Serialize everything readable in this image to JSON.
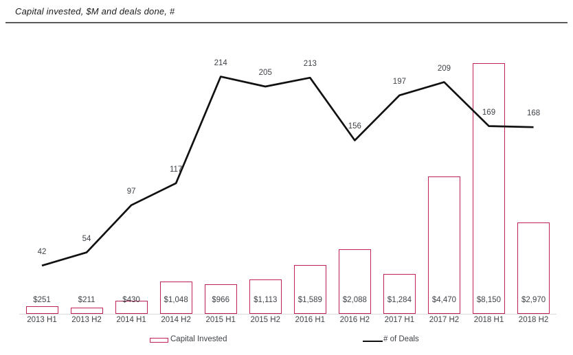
{
  "title": "Capital invested, $M and deals done, #",
  "legend": {
    "bar_label": "Capital Invested",
    "line_label": "# of Deals"
  },
  "colors": {
    "bar_stroke": "#be2056",
    "bar_fill": "#ffffff",
    "line": "#111111",
    "label_text": "#3f4348",
    "axis_line": "#d9d9d9",
    "divider": "#5a5a5a"
  },
  "chart_data": {
    "type": "combo-bar-line",
    "title": "Capital invested, $M and deals done, #",
    "categories": [
      "2013 H1",
      "2013 H2",
      "2014 H1",
      "2014 H2",
      "2015 H1",
      "2015 H2",
      "2016 H1",
      "2016 H2",
      "2017 H1",
      "2017 H2",
      "2018 H1",
      "2018 H2"
    ],
    "series": [
      {
        "name": "Capital Invested",
        "type": "bar",
        "unit": "$M",
        "values": [
          251,
          211,
          430,
          1048,
          966,
          1113,
          1589,
          2088,
          1284,
          4470,
          8150,
          2970
        ],
        "value_labels": [
          "$251",
          "$211",
          "$430",
          "$1,048",
          "$966",
          "$1,113",
          "$1,589",
          "$2,088",
          "$1,284",
          "$4,470",
          "$8,150",
          "$2,970"
        ]
      },
      {
        "name": "# of Deals",
        "type": "line",
        "values": [
          42,
          54,
          97,
          117,
          214,
          205,
          213,
          156,
          197,
          209,
          169,
          168
        ]
      }
    ],
    "layout": {
      "legend_position": "bottom",
      "grid": false,
      "y_axis_visible": false,
      "value_labels_visible": true,
      "bar_ylim": [
        0,
        8150
      ],
      "line_ylim_approx": [
        0,
        230
      ]
    }
  }
}
